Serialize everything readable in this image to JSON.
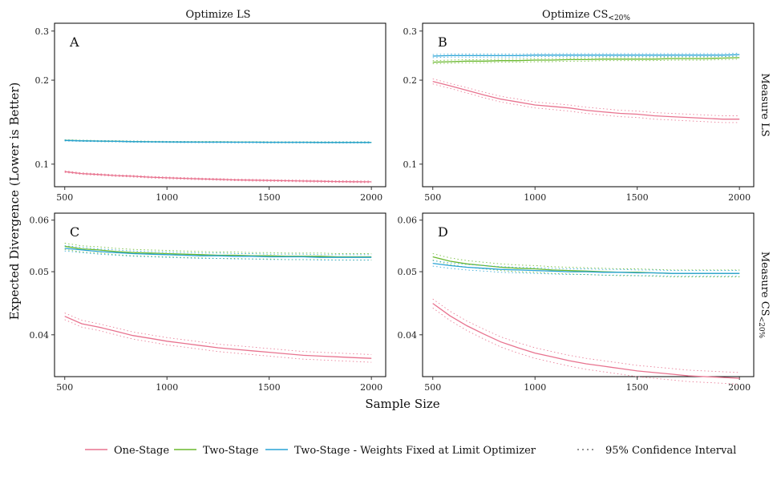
{
  "chart_data": {
    "type": "line",
    "xlabel": "Sample Size",
    "ylabel": "Expected Divergence (Lower is Better)",
    "col_strips": [
      {
        "text": "Optimize LS",
        "sub": ""
      },
      {
        "text": "Optimize CS",
        "sub": "<20%"
      }
    ],
    "row_strips": [
      {
        "text": "Measure LS",
        "sub": ""
      },
      {
        "text": "Measure CS",
        "sub": "<20%"
      }
    ],
    "x": [
      500,
      583,
      667,
      750,
      833,
      917,
      1000,
      1083,
      1167,
      1250,
      1333,
      1417,
      1500,
      1583,
      1667,
      1750,
      1833,
      1917,
      2000
    ],
    "xlim": [
      450,
      2070
    ],
    "xticks": [
      "500",
      "1000",
      "1500",
      "2000"
    ],
    "y_scale": "log",
    "colors": {
      "One-Stage": "#e8738f",
      "Two-Stage": "#6ab82e",
      "Two-Stage - Weights Fixed at Limit Optimizer": "#29a3d6"
    },
    "legend": {
      "position": "bottom",
      "items": [
        "One-Stage",
        "Two-Stage",
        "Two-Stage - Weights Fixed at Limit Optimizer"
      ],
      "ci_label": "95% Confidence Interval"
    },
    "panels": [
      {
        "letter": "A",
        "ylim": [
          0.083,
          0.32
        ],
        "yticks": [
          "0.1",
          "0.2",
          "0.3"
        ],
        "series": [
          {
            "name": "One-Stage",
            "values": [
              0.094,
              0.0925,
              0.0918,
              0.091,
              0.0905,
              0.0898,
              0.0893,
              0.0889,
              0.0885,
              0.0882,
              0.0878,
              0.0876,
              0.0874,
              0.0872,
              0.087,
              0.0868,
              0.0866,
              0.0865,
              0.0864
            ],
            "ci": 0.0006
          },
          {
            "name": "Two-Stage",
            "values": [
              0.1218,
              0.1213,
              0.121,
              0.1208,
              0.1205,
              0.1203,
              0.1202,
              0.1201,
              0.12,
              0.12,
              0.1199,
              0.1199,
              0.1198,
              0.1198,
              0.1198,
              0.1197,
              0.1197,
              0.1197,
              0.1197
            ],
            "ci": 0.0005
          },
          {
            "name": "Two-Stage - Weights Fixed at Limit Optimizer",
            "values": [
              0.1216,
              0.1212,
              0.1209,
              0.1207,
              0.1204,
              0.1202,
              0.1201,
              0.12,
              0.1199,
              0.1199,
              0.1198,
              0.1198,
              0.1197,
              0.1197,
              0.1197,
              0.1196,
              0.1196,
              0.1196,
              0.1196
            ],
            "ci": 0.0005
          }
        ]
      },
      {
        "letter": "B",
        "ylim": [
          0.083,
          0.32
        ],
        "yticks": [
          "0.1",
          "0.2",
          "0.3"
        ],
        "series": [
          {
            "name": "One-Stage",
            "values": [
              0.198,
              0.191,
              0.184,
              0.177,
              0.171,
              0.167,
              0.163,
              0.161,
              0.159,
              0.156,
              0.154,
              0.152,
              0.151,
              0.149,
              0.148,
              0.147,
              0.146,
              0.145,
              0.145
            ],
            "ci": 0.004
          },
          {
            "name": "Two-Stage",
            "values": [
              0.232,
              0.233,
              0.234,
              0.234,
              0.235,
              0.235,
              0.236,
              0.236,
              0.237,
              0.237,
              0.238,
              0.238,
              0.238,
              0.238,
              0.239,
              0.239,
              0.239,
              0.24,
              0.241
            ],
            "ci": 0.003
          },
          {
            "name": "Two-Stage - Weights Fixed at Limit Optimizer",
            "values": [
              0.244,
              0.245,
              0.245,
              0.245,
              0.245,
              0.245,
              0.246,
              0.246,
              0.246,
              0.246,
              0.246,
              0.246,
              0.246,
              0.246,
              0.246,
              0.246,
              0.246,
              0.246,
              0.247
            ],
            "ci": 0.003
          }
        ]
      },
      {
        "letter": "C",
        "ylim": [
          0.0345,
          0.0615
        ],
        "yticks": [
          "0.04",
          "0.05",
          "0.06"
        ],
        "series": [
          {
            "name": "One-Stage",
            "values": [
              0.0427,
              0.0416,
              0.0411,
              0.0405,
              0.0399,
              0.0395,
              0.0391,
              0.0388,
              0.0385,
              0.0382,
              0.038,
              0.0378,
              0.0376,
              0.0374,
              0.0372,
              0.0371,
              0.037,
              0.0369,
              0.0368
            ],
            "ci": 0.0005
          },
          {
            "name": "Two-Stage",
            "values": [
              0.0547,
              0.0542,
              0.054,
              0.0537,
              0.0535,
              0.0534,
              0.0533,
              0.0532,
              0.0531,
              0.053,
              0.053,
              0.0529,
              0.0529,
              0.0528,
              0.0528,
              0.0528,
              0.0527,
              0.0527,
              0.0527
            ],
            "ci": 0.0006
          },
          {
            "name": "Two-Stage - Weights Fixed at Limit Optimizer",
            "values": [
              0.0543,
              0.054,
              0.0537,
              0.0535,
              0.0533,
              0.0532,
              0.0531,
              0.053,
              0.0529,
              0.0529,
              0.0528,
              0.0528,
              0.0527,
              0.0527,
              0.0527,
              0.0526,
              0.0526,
              0.0526,
              0.0526
            ],
            "ci": 0.0005
          }
        ]
      },
      {
        "letter": "D",
        "ylim": [
          0.0345,
          0.0615
        ],
        "yticks": [
          "0.04",
          "0.05",
          "0.06"
        ],
        "series": [
          {
            "name": "One-Stage",
            "values": [
              0.0447,
              0.0428,
              0.0413,
              0.0401,
              0.039,
              0.0382,
              0.0375,
              0.037,
              0.0365,
              0.0361,
              0.0358,
              0.0355,
              0.0352,
              0.035,
              0.0348,
              0.0346,
              0.0345,
              0.0344,
              0.0343
            ],
            "ci": 0.0007
          },
          {
            "name": "Two-Stage",
            "values": [
              0.0527,
              0.0519,
              0.0514,
              0.0511,
              0.0508,
              0.0506,
              0.0505,
              0.0503,
              0.0502,
              0.0501,
              0.05,
              0.0499,
              0.0499,
              0.0498,
              0.0497,
              0.0497,
              0.0497,
              0.0497,
              0.0497
            ],
            "ci": 0.0006
          },
          {
            "name": "Two-Stage - Weights Fixed at Limit Optimizer",
            "values": [
              0.0515,
              0.0511,
              0.0508,
              0.0506,
              0.0504,
              0.0503,
              0.0502,
              0.0501,
              0.05,
              0.05,
              0.0499,
              0.0499,
              0.0498,
              0.0498,
              0.0497,
              0.0497,
              0.0497,
              0.0497,
              0.0497
            ],
            "ci": 0.0005
          }
        ]
      }
    ]
  }
}
